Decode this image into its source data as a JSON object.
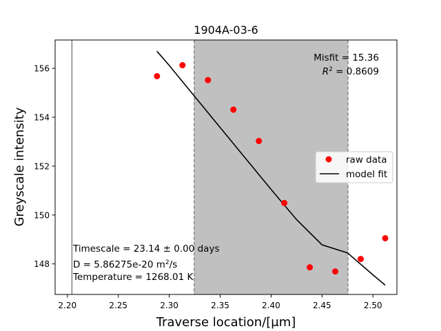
{
  "chart_data": {
    "type": "scatter",
    "title": "1904A-03-6",
    "xlabel": "Traverse location/[μm]",
    "ylabel": "Greyscale intensity",
    "xlim": [
      2.188,
      2.5235
    ],
    "ylim": [
      146.75,
      157.16
    ],
    "x_ticks": [
      "2.20",
      "2.25",
      "2.30",
      "2.35",
      "2.40",
      "2.45",
      "2.50"
    ],
    "x_tick_values": [
      2.2,
      2.25,
      2.3,
      2.35,
      2.4,
      2.45,
      2.5
    ],
    "y_ticks": [
      "148",
      "150",
      "152",
      "154",
      "156"
    ],
    "y_tick_values": [
      148,
      150,
      152,
      154,
      156
    ],
    "grid": false,
    "legend_position": "center-right",
    "series": [
      {
        "name": "raw data",
        "kind": "points",
        "color": "#ff0000",
        "x": [
          2.288,
          2.313,
          2.338,
          2.363,
          2.388,
          2.413,
          2.438,
          2.463,
          2.488,
          2.512
        ],
        "y": [
          155.68,
          156.13,
          155.52,
          154.31,
          153.03,
          150.49,
          147.86,
          147.69,
          148.2,
          149.05
        ]
      },
      {
        "name": "model fit",
        "kind": "line",
        "color": "#000000",
        "x": [
          2.288,
          2.3,
          2.325,
          2.35,
          2.375,
          2.4,
          2.425,
          2.45,
          2.475,
          2.5,
          2.512
        ],
        "y": [
          156.7,
          156.12,
          154.85,
          153.58,
          152.31,
          151.05,
          149.81,
          148.78,
          148.45,
          147.55,
          147.13
        ]
      }
    ],
    "reference_line": {
      "x": 2.2045,
      "color": "#808080"
    },
    "shaded_region": {
      "x_start": 2.3245,
      "x_end": 2.4755,
      "color": "#c0c0c0"
    },
    "annotations": {
      "misfit": "Misfit = 15.36",
      "r2_value": " = 0.8609",
      "timescale": "Timescale = 23.14 ± 0.00 days",
      "diffusivity_prefix": "D = 5.86275e-20 m",
      "diffusivity_exp": "2",
      "diffusivity_suffix": "/s",
      "temperature": "Temperature = 1268.01 K"
    }
  }
}
